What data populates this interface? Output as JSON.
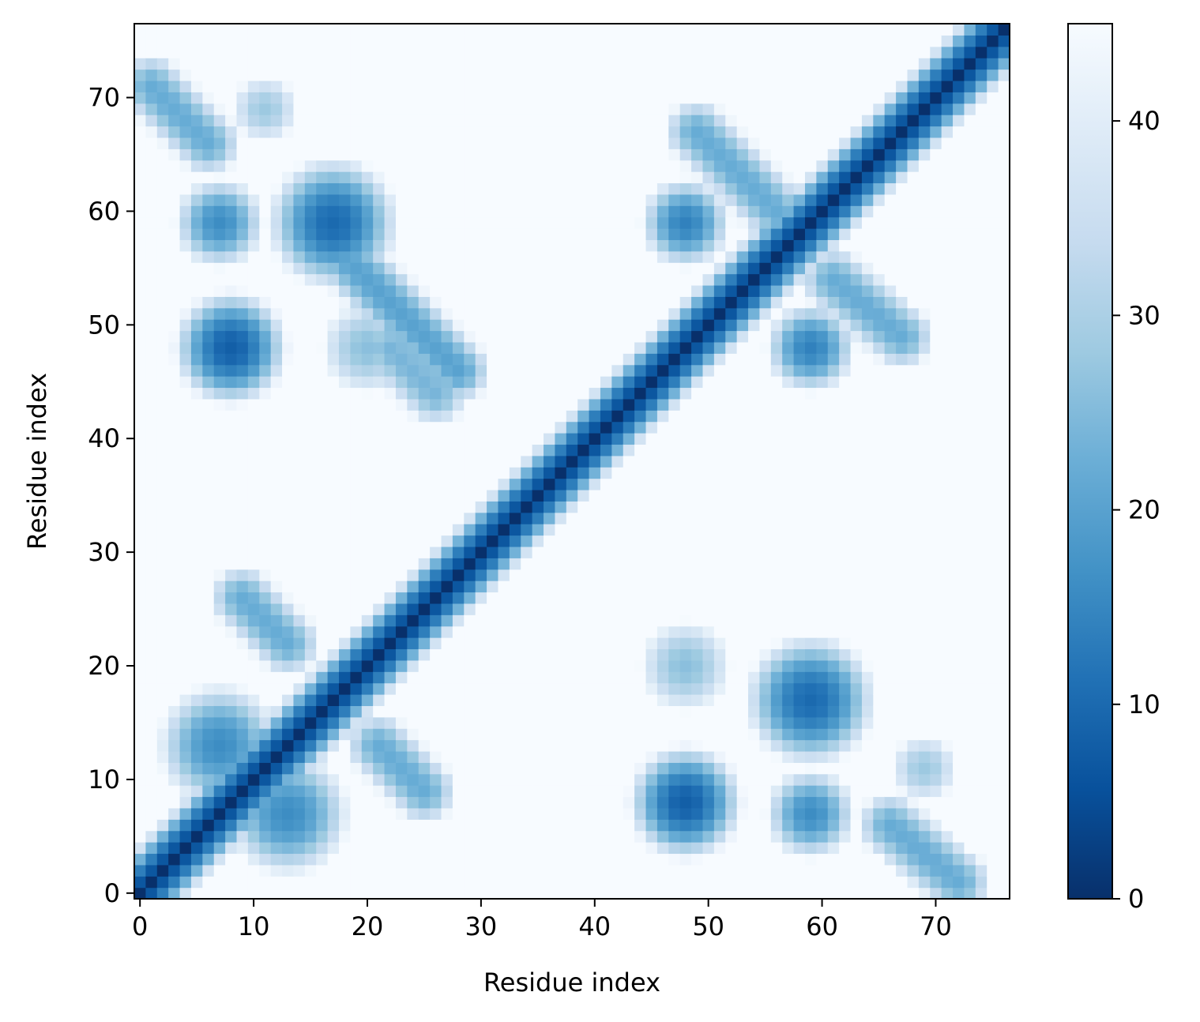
{
  "chart_data": {
    "type": "heatmap",
    "title": "",
    "xlabel": "Residue index",
    "ylabel": "Residue index",
    "n": 77,
    "x_range": [
      -0.5,
      76.5
    ],
    "y_range": [
      -0.5,
      76.5
    ],
    "x_ticks": [
      0,
      10,
      20,
      30,
      40,
      50,
      60,
      70
    ],
    "y_ticks": [
      0,
      10,
      20,
      30,
      40,
      50,
      60,
      70
    ],
    "origin": "lower",
    "colormap": "Blues_r",
    "colorbar": {
      "min": 0,
      "max": 45,
      "ticks": [
        0,
        10,
        20,
        30,
        40
      ],
      "placement": "right"
    },
    "background_value": 45,
    "diagonal_band": {
      "half_width": 5
    },
    "features": [
      {
        "kind": "antidiagonal",
        "start": [
          28,
          46
        ],
        "end": [
          18,
          56
        ],
        "min": 20
      },
      {
        "kind": "antidiagonal",
        "start": [
          26,
          44
        ],
        "end": [
          22,
          48
        ],
        "min": 24
      },
      {
        "kind": "antidiagonal",
        "start": [
          49,
          67
        ],
        "end": [
          57,
          59
        ],
        "min": 22
      },
      {
        "kind": "antidiagonal",
        "start": [
          61,
          54
        ],
        "end": [
          67,
          49
        ],
        "min": 22
      },
      {
        "kind": "antidiagonal",
        "start": [
          6,
          66
        ],
        "end": [
          1,
          71
        ],
        "min": 22
      },
      {
        "kind": "antidiagonal",
        "start": [
          66,
          6
        ],
        "end": [
          72,
          1
        ],
        "min": 22
      },
      {
        "kind": "antidiagonal",
        "start": [
          13,
          22
        ],
        "end": [
          9,
          26
        ],
        "min": 22
      },
      {
        "kind": "antidiagonal",
        "start": [
          21,
          13
        ],
        "end": [
          25,
          9
        ],
        "min": 22
      },
      {
        "kind": "blob",
        "center": [
          17,
          59
        ],
        "radius": 3.2,
        "min": 10
      },
      {
        "kind": "blob",
        "center": [
          59,
          17
        ],
        "radius": 3.2,
        "min": 10
      },
      {
        "kind": "blob",
        "center": [
          8,
          48
        ],
        "radius": 2.8,
        "min": 8
      },
      {
        "kind": "blob",
        "center": [
          48,
          8
        ],
        "radius": 2.8,
        "min": 8
      },
      {
        "kind": "blob",
        "center": [
          7,
          59
        ],
        "radius": 2.2,
        "min": 16
      },
      {
        "kind": "blob",
        "center": [
          59,
          7
        ],
        "radius": 2.2,
        "min": 16
      },
      {
        "kind": "blob",
        "center": [
          48,
          59
        ],
        "radius": 2.2,
        "min": 14
      },
      {
        "kind": "blob",
        "center": [
          59,
          48
        ],
        "radius": 2.2,
        "min": 14
      },
      {
        "kind": "blob",
        "center": [
          7,
          13
        ],
        "radius": 3,
        "min": 16
      },
      {
        "kind": "blob",
        "center": [
          13,
          7
        ],
        "radius": 3,
        "min": 16
      },
      {
        "kind": "blob",
        "center": [
          11,
          69
        ],
        "radius": 1.6,
        "min": 28
      },
      {
        "kind": "blob",
        "center": [
          69,
          11
        ],
        "radius": 1.6,
        "min": 28
      },
      {
        "kind": "blob",
        "center": [
          20,
          48
        ],
        "radius": 2.2,
        "min": 26
      },
      {
        "kind": "blob",
        "center": [
          48,
          20
        ],
        "radius": 2.2,
        "min": 26
      }
    ]
  }
}
